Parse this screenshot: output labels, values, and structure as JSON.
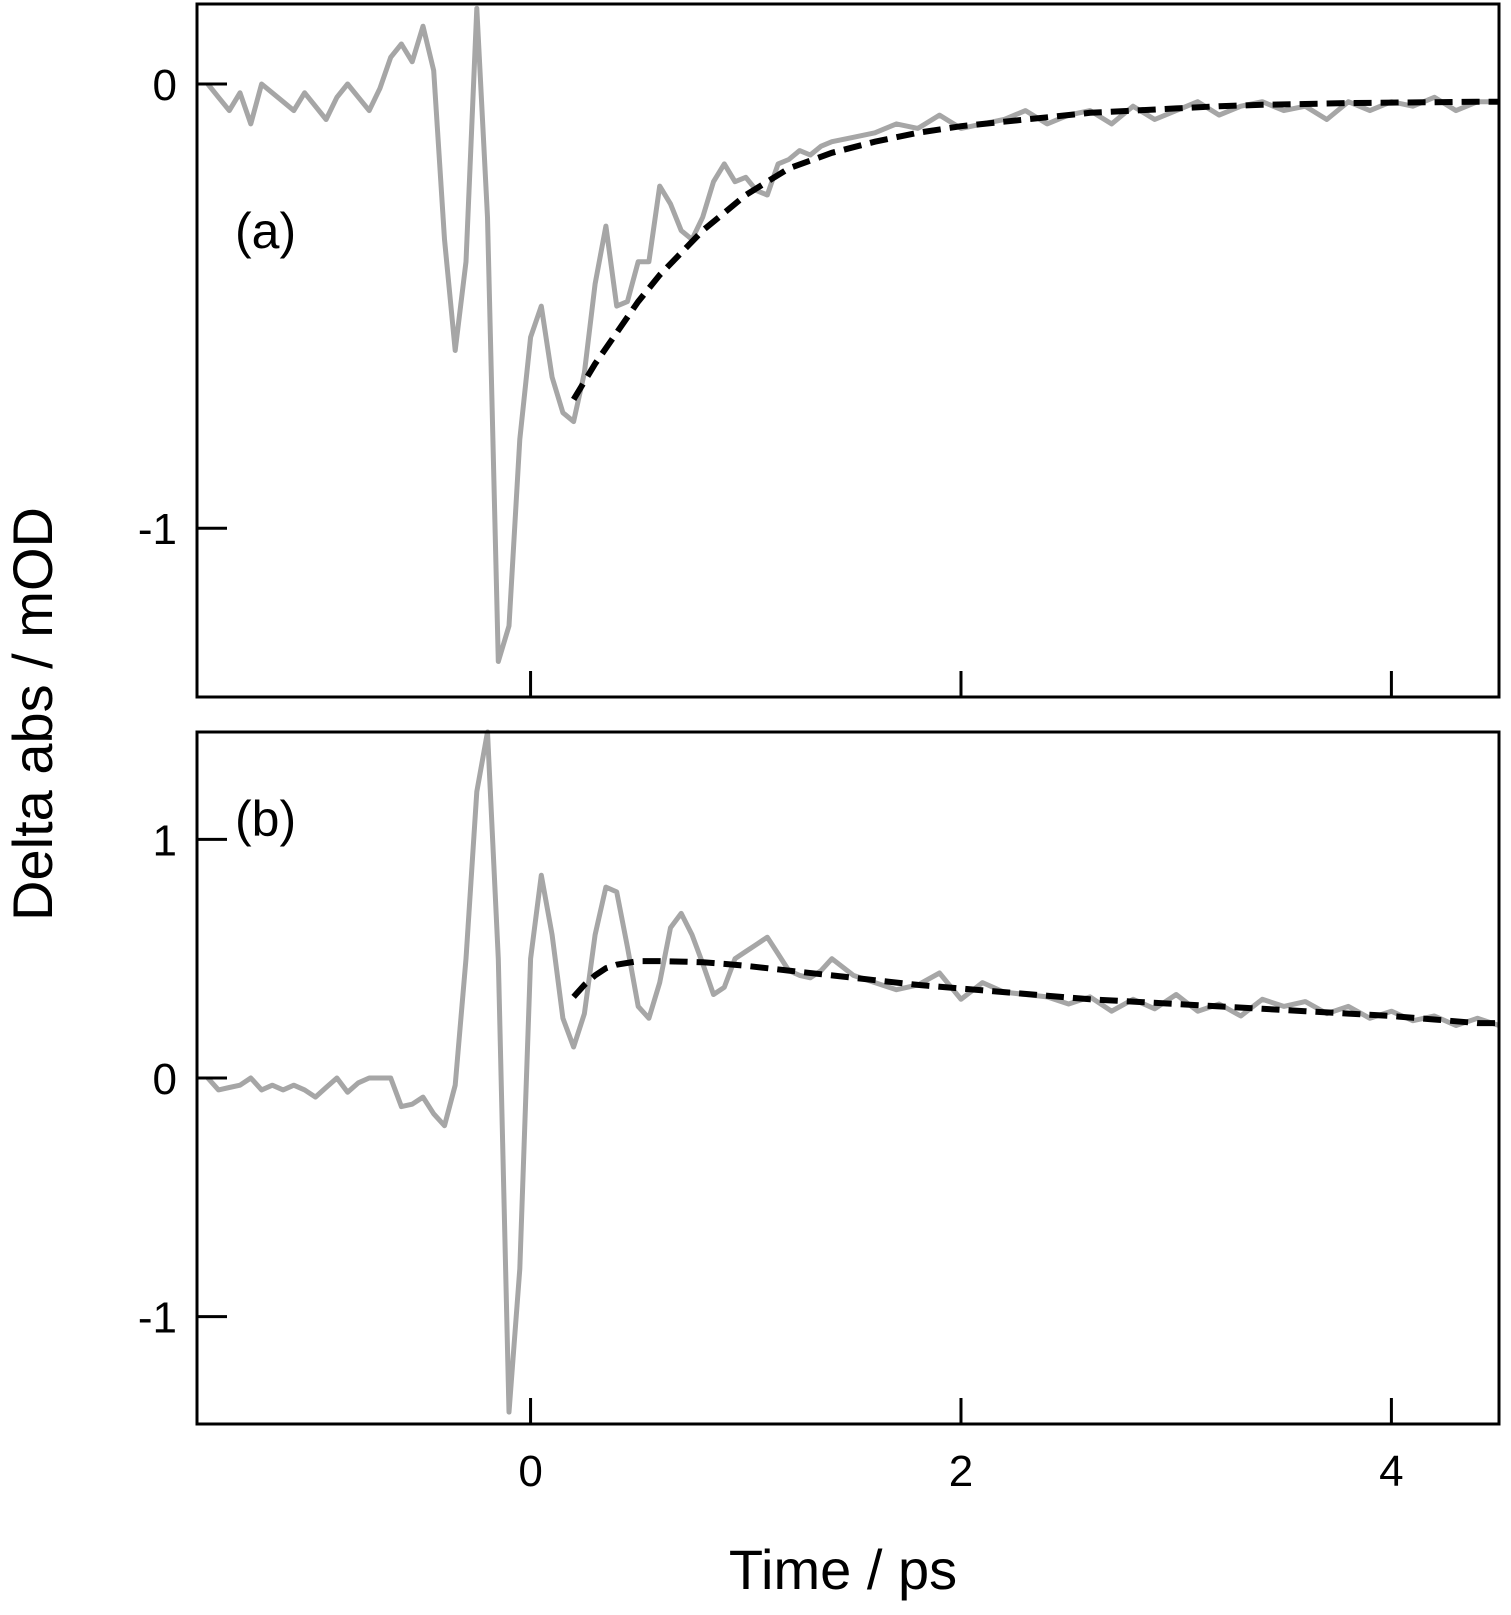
{
  "chart_data": [
    {
      "type": "line",
      "panel_label": "(a)",
      "xlim": [
        -1.55,
        4.5
      ],
      "ylim": [
        -1.38,
        0.18
      ],
      "xticks": [
        0,
        2,
        4
      ],
      "yticks": [
        0,
        -1
      ],
      "ytick_labels": [
        "0",
        "-1"
      ],
      "series": [
        {
          "style": "data",
          "color": "#a6a6a6",
          "x": [
            -1.5,
            -1.45,
            -1.4,
            -1.35,
            -1.3,
            -1.25,
            -1.2,
            -1.15,
            -1.1,
            -1.05,
            -1.0,
            -0.95,
            -0.9,
            -0.85,
            -0.8,
            -0.75,
            -0.7,
            -0.65,
            -0.6,
            -0.55,
            -0.5,
            -0.45,
            -0.4,
            -0.35,
            -0.3,
            -0.25,
            -0.2,
            -0.15,
            -0.1,
            -0.05,
            0.0,
            0.05,
            0.1,
            0.15,
            0.2,
            0.25,
            0.3,
            0.35,
            0.4,
            0.45,
            0.5,
            0.55,
            0.6,
            0.65,
            0.7,
            0.75,
            0.8,
            0.85,
            0.9,
            0.95,
            1.0,
            1.05,
            1.1,
            1.15,
            1.2,
            1.25,
            1.3,
            1.35,
            1.4,
            1.5,
            1.6,
            1.7,
            1.8,
            1.9,
            2.0,
            2.1,
            2.2,
            2.3,
            2.4,
            2.5,
            2.6,
            2.7,
            2.8,
            2.9,
            3.0,
            3.1,
            3.2,
            3.3,
            3.4,
            3.5,
            3.6,
            3.7,
            3.8,
            3.9,
            4.0,
            4.1,
            4.2,
            4.3,
            4.4,
            4.5
          ],
          "y": [
            0.0,
            -0.03,
            -0.06,
            -0.02,
            -0.09,
            0.0,
            -0.02,
            -0.04,
            -0.06,
            -0.02,
            -0.05,
            -0.08,
            -0.03,
            0.0,
            -0.03,
            -0.06,
            -0.01,
            0.06,
            0.09,
            0.05,
            0.13,
            0.03,
            -0.35,
            -0.6,
            -0.4,
            0.17,
            -0.3,
            -1.3,
            -1.22,
            -0.8,
            -0.57,
            -0.5,
            -0.66,
            -0.74,
            -0.76,
            -0.65,
            -0.45,
            -0.32,
            -0.5,
            -0.49,
            -0.4,
            -0.4,
            -0.23,
            -0.27,
            -0.33,
            -0.35,
            -0.3,
            -0.22,
            -0.18,
            -0.22,
            -0.21,
            -0.24,
            -0.25,
            -0.18,
            -0.17,
            -0.15,
            -0.16,
            -0.14,
            -0.13,
            -0.12,
            -0.11,
            -0.09,
            -0.1,
            -0.07,
            -0.1,
            -0.09,
            -0.08,
            -0.06,
            -0.09,
            -0.07,
            -0.06,
            -0.09,
            -0.05,
            -0.08,
            -0.06,
            -0.04,
            -0.07,
            -0.05,
            -0.04,
            -0.06,
            -0.05,
            -0.08,
            -0.04,
            -0.06,
            -0.04,
            -0.05,
            -0.03,
            -0.06,
            -0.04,
            -0.04
          ]
        },
        {
          "style": "fit",
          "color": "#000000",
          "x": [
            0.2,
            0.3,
            0.4,
            0.5,
            0.6,
            0.7,
            0.8,
            0.9,
            1.0,
            1.2,
            1.4,
            1.6,
            1.8,
            2.0,
            2.2,
            2.4,
            2.6,
            2.8,
            3.0,
            3.2,
            3.4,
            3.6,
            3.8,
            4.0,
            4.2,
            4.4,
            4.5
          ],
          "y": [
            -0.71,
            -0.63,
            -0.56,
            -0.49,
            -0.43,
            -0.38,
            -0.33,
            -0.29,
            -0.25,
            -0.19,
            -0.155,
            -0.13,
            -0.11,
            -0.095,
            -0.085,
            -0.075,
            -0.065,
            -0.06,
            -0.055,
            -0.05,
            -0.047,
            -0.045,
            -0.043,
            -0.042,
            -0.041,
            -0.04,
            -0.04
          ]
        }
      ]
    },
    {
      "type": "line",
      "panel_label": "(b)",
      "xlabel": "Time / ps",
      "xlim": [
        -1.55,
        4.5
      ],
      "ylim": [
        -1.45,
        1.45
      ],
      "xticks": [
        0,
        2,
        4
      ],
      "xtick_labels": [
        "0",
        "2",
        "4"
      ],
      "yticks": [
        1,
        0,
        -1
      ],
      "ytick_labels": [
        "1",
        "0",
        "-1"
      ],
      "series": [
        {
          "style": "data",
          "color": "#a6a6a6",
          "x": [
            -1.5,
            -1.45,
            -1.4,
            -1.35,
            -1.3,
            -1.25,
            -1.2,
            -1.15,
            -1.1,
            -1.05,
            -1.0,
            -0.95,
            -0.9,
            -0.85,
            -0.8,
            -0.75,
            -0.7,
            -0.65,
            -0.6,
            -0.55,
            -0.5,
            -0.45,
            -0.4,
            -0.35,
            -0.3,
            -0.25,
            -0.2,
            -0.15,
            -0.1,
            -0.05,
            0.0,
            0.05,
            0.1,
            0.15,
            0.2,
            0.25,
            0.3,
            0.35,
            0.4,
            0.45,
            0.5,
            0.55,
            0.6,
            0.65,
            0.7,
            0.75,
            0.8,
            0.85,
            0.9,
            0.95,
            1.0,
            1.05,
            1.1,
            1.15,
            1.2,
            1.25,
            1.3,
            1.35,
            1.4,
            1.5,
            1.6,
            1.7,
            1.8,
            1.9,
            2.0,
            2.1,
            2.2,
            2.3,
            2.4,
            2.5,
            2.6,
            2.7,
            2.8,
            2.9,
            3.0,
            3.1,
            3.2,
            3.3,
            3.4,
            3.5,
            3.6,
            3.7,
            3.8,
            3.9,
            4.0,
            4.1,
            4.2,
            4.3,
            4.4,
            4.5
          ],
          "y": [
            0.0,
            -0.05,
            -0.04,
            -0.03,
            0.0,
            -0.05,
            -0.03,
            -0.05,
            -0.03,
            -0.05,
            -0.08,
            -0.04,
            0.0,
            -0.06,
            -0.02,
            0.0,
            0.0,
            0.0,
            -0.12,
            -0.11,
            -0.08,
            -0.15,
            -0.2,
            -0.03,
            0.5,
            1.2,
            1.45,
            0.5,
            -1.4,
            -0.8,
            0.5,
            0.85,
            0.6,
            0.25,
            0.13,
            0.27,
            0.6,
            0.8,
            0.78,
            0.55,
            0.3,
            0.25,
            0.4,
            0.63,
            0.69,
            0.6,
            0.48,
            0.35,
            0.38,
            0.5,
            0.53,
            0.56,
            0.59,
            0.52,
            0.45,
            0.43,
            0.42,
            0.45,
            0.5,
            0.43,
            0.4,
            0.37,
            0.39,
            0.44,
            0.33,
            0.4,
            0.36,
            0.35,
            0.34,
            0.31,
            0.34,
            0.28,
            0.33,
            0.29,
            0.35,
            0.28,
            0.31,
            0.26,
            0.33,
            0.3,
            0.32,
            0.27,
            0.3,
            0.25,
            0.28,
            0.24,
            0.26,
            0.22,
            0.25,
            0.22
          ]
        },
        {
          "style": "fit",
          "color": "#000000",
          "x": [
            0.2,
            0.25,
            0.3,
            0.35,
            0.4,
            0.5,
            0.6,
            0.7,
            0.8,
            0.9,
            1.0,
            1.2,
            1.4,
            1.6,
            1.8,
            2.0,
            2.2,
            2.4,
            2.6,
            2.8,
            3.0,
            3.2,
            3.4,
            3.6,
            3.8,
            4.0,
            4.2,
            4.4,
            4.5
          ],
          "y": [
            0.34,
            0.39,
            0.43,
            0.46,
            0.475,
            0.49,
            0.49,
            0.488,
            0.485,
            0.478,
            0.47,
            0.45,
            0.43,
            0.41,
            0.39,
            0.375,
            0.36,
            0.345,
            0.33,
            0.32,
            0.31,
            0.3,
            0.29,
            0.28,
            0.27,
            0.26,
            0.245,
            0.23,
            0.23
          ]
        }
      ]
    }
  ],
  "ylabel": "Delta abs / mOD"
}
